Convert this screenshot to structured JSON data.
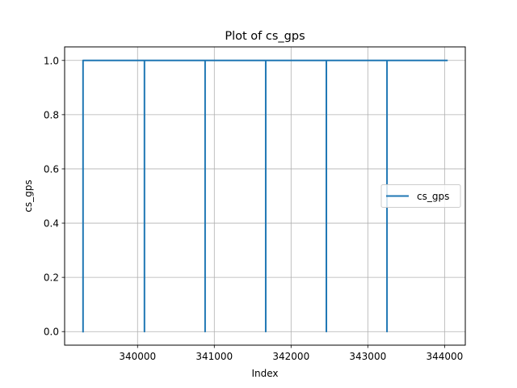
{
  "chart_data": {
    "type": "line",
    "title": "Plot of cs_gps",
    "xlabel": "Index",
    "ylabel": "cs_gps",
    "xlim": [
      339050,
      344270
    ],
    "ylim": [
      -0.05,
      1.05
    ],
    "xticks": [
      340000,
      341000,
      342000,
      343000,
      344000
    ],
    "xtick_labels": [
      "340000",
      "341000",
      "342000",
      "343000",
      "344000"
    ],
    "yticks": [
      0.0,
      0.2,
      0.4,
      0.6,
      0.8,
      1.0
    ],
    "ytick_labels": [
      "0.0",
      "0.2",
      "0.4",
      "0.6",
      "0.8",
      "1.0"
    ],
    "grid": true,
    "legend": {
      "position": "center-right",
      "entries": [
        "cs_gps"
      ]
    },
    "series": [
      {
        "name": "cs_gps",
        "color": "#1f77b4",
        "x": [
          339290,
          339290,
          340090,
          340090,
          340090,
          340880,
          340880,
          340880,
          341670,
          341670,
          341670,
          342460,
          342460,
          342460,
          343250,
          343250,
          343250,
          344030
        ],
        "y": [
          0,
          1,
          1,
          0,
          1,
          1,
          0,
          1,
          1,
          0,
          1,
          1,
          0,
          1,
          1,
          0,
          1,
          1
        ]
      }
    ]
  }
}
